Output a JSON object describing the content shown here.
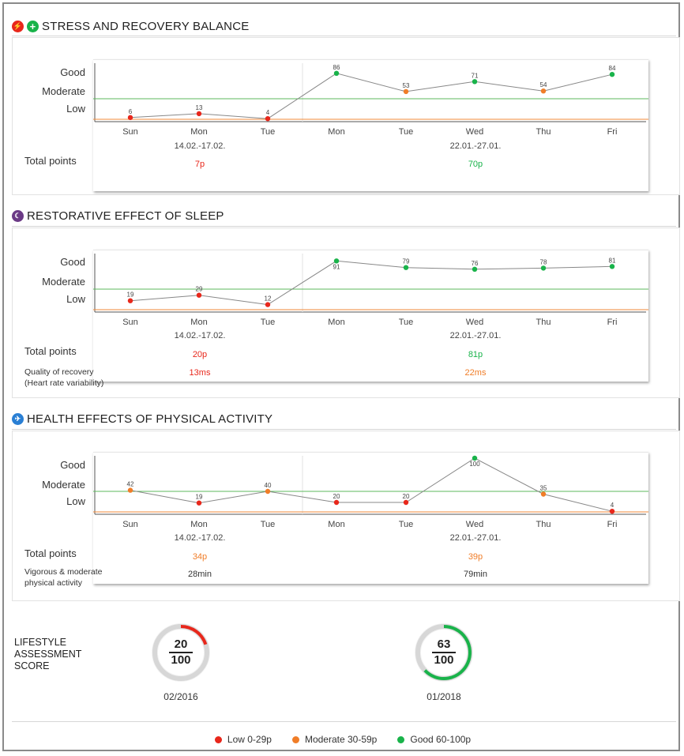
{
  "colors": {
    "low": "#e8271b",
    "moderate": "#f07d28",
    "good": "#19b34a",
    "good_line": "#5cb85c",
    "moderate_line": "#f08a3a"
  },
  "days": [
    "Sun",
    "Mon",
    "Tue",
    "Mon",
    "Tue",
    "Wed",
    "Thu",
    "Fri"
  ],
  "levels": {
    "good": "Good",
    "moderate": "Moderate",
    "low": "Low"
  },
  "periods": [
    "14.02.-17.02.",
    "22.01.-27.01."
  ],
  "total_points_label": "Total points",
  "sections": [
    {
      "title": "STRESS AND RECOVERY BALANCE",
      "icon": "bolt-and-plus-icon",
      "totals": [
        "7p",
        "70p"
      ],
      "total_colors": [
        "low",
        "good"
      ],
      "extra_label": "",
      "extra_values": []
    },
    {
      "title": "RESTORATIVE EFFECT OF SLEEP",
      "icon": "moon-icon",
      "totals": [
        "20p",
        "81p"
      ],
      "total_colors": [
        "low",
        "good"
      ],
      "extra_label_1": "Quality of recovery",
      "extra_label_2": "(Heart rate variability)",
      "extra_values": [
        "13ms",
        "22ms"
      ],
      "extra_colors": [
        "low",
        "moderate"
      ]
    },
    {
      "title": "HEALTH EFFECTS OF PHYSICAL ACTIVITY",
      "icon": "runner-icon",
      "totals": [
        "34p",
        "39p"
      ],
      "total_colors": [
        "moderate",
        "moderate"
      ],
      "extra_label_1": "Vigorous & moderate",
      "extra_label_2": "physical activity",
      "extra_values": [
        "28min",
        "79min"
      ],
      "extra_colors": [
        "dark",
        "dark"
      ]
    }
  ],
  "chart_data": [
    {
      "type": "line",
      "x": [
        "Sun",
        "Mon",
        "Tue",
        "Mon",
        "Tue",
        "Wed",
        "Thu",
        "Fri"
      ],
      "values": [
        6,
        13,
        4,
        86,
        53,
        71,
        54,
        84
      ],
      "levels": [
        "Low",
        "Moderate",
        "Good"
      ],
      "thresholds": {
        "moderate": 30,
        "good": 60
      }
    },
    {
      "type": "line",
      "x": [
        "Sun",
        "Mon",
        "Tue",
        "Mon",
        "Tue",
        "Wed",
        "Thu",
        "Fri"
      ],
      "values": [
        19,
        29,
        12,
        91,
        79,
        76,
        78,
        81
      ],
      "levels": [
        "Low",
        "Moderate",
        "Good"
      ],
      "thresholds": {
        "moderate": 30,
        "good": 60
      }
    },
    {
      "type": "line",
      "x": [
        "Sun",
        "Mon",
        "Tue",
        "Mon",
        "Tue",
        "Wed",
        "Thu",
        "Fri"
      ],
      "values": [
        42,
        19,
        40,
        20,
        20,
        100,
        35,
        4
      ],
      "levels": [
        "Low",
        "Moderate",
        "Good"
      ],
      "thresholds": {
        "moderate": 30,
        "good": 60
      }
    }
  ],
  "score": {
    "title_lines": [
      "LIFESTYLE",
      "ASSESSMENT",
      "SCORE"
    ],
    "gauges": [
      {
        "value": "20",
        "max": "100",
        "fraction": 0.2,
        "date": "02/2016",
        "color": "low"
      },
      {
        "value": "63",
        "max": "100",
        "fraction": 0.63,
        "date": "01/2018",
        "color": "good"
      }
    ]
  },
  "legend": [
    {
      "label": "Low 0-29p",
      "color": "low"
    },
    {
      "label": "Moderate 30-59p",
      "color": "moderate"
    },
    {
      "label": "Good 60-100p",
      "color": "good"
    }
  ]
}
